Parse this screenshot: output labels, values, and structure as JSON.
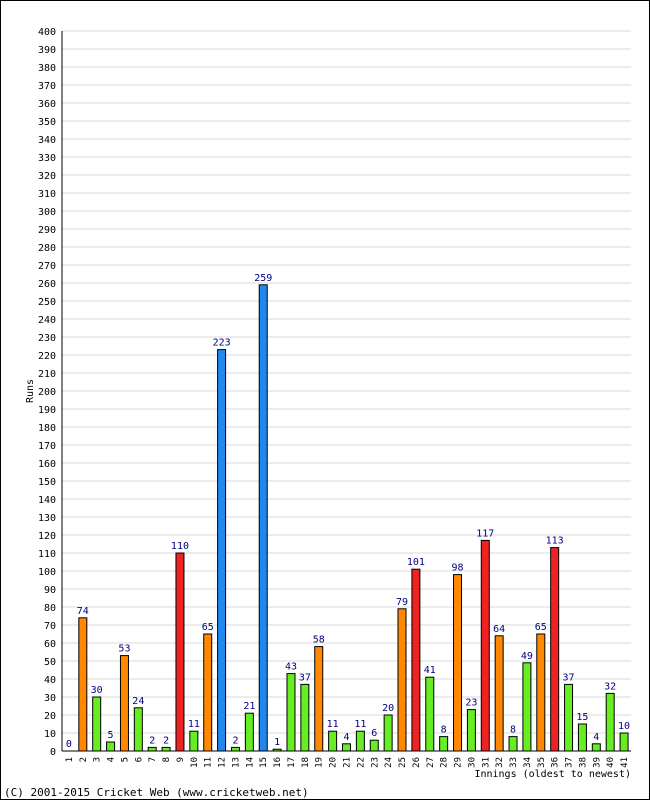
{
  "chart_data": {
    "type": "bar",
    "title": "",
    "xlabel": "Innings (oldest to newest)",
    "ylabel": "Runs",
    "ylim": [
      0,
      400
    ],
    "ytick_step": 10,
    "grid": true,
    "legend": "none",
    "categories": [
      "1",
      "2",
      "3",
      "4",
      "5",
      "6",
      "7",
      "8",
      "9",
      "10",
      "11",
      "12",
      "13",
      "14",
      "15",
      "16",
      "17",
      "18",
      "19",
      "20",
      "21",
      "22",
      "23",
      "24",
      "25",
      "26",
      "27",
      "28",
      "29",
      "30",
      "31",
      "32",
      "33",
      "34",
      "35",
      "36",
      "37",
      "38",
      "39",
      "40",
      "41"
    ],
    "values": [
      0,
      74,
      30,
      5,
      53,
      24,
      2,
      2,
      110,
      11,
      65,
      223,
      2,
      21,
      259,
      1,
      43,
      37,
      58,
      11,
      4,
      11,
      6,
      20,
      79,
      101,
      41,
      8,
      98,
      23,
      117,
      64,
      8,
      49,
      65,
      113,
      37,
      15,
      4,
      32,
      10
    ],
    "data_labels": [
      "0",
      "74",
      "30",
      "5",
      "53",
      "24",
      "2",
      "2",
      "110",
      "11",
      "65",
      "223",
      "2",
      "21",
      "259",
      "1",
      "43",
      "37",
      "58",
      "11",
      "4",
      "11",
      "6",
      "20",
      "79",
      "101",
      "41",
      "8",
      "98",
      "23",
      "117",
      "64",
      "8",
      "49",
      "65",
      "113",
      "37",
      "15",
      "4",
      "32",
      "10"
    ],
    "color_rules": {
      "below_50": "#66ee22",
      "50_to_99": "#ff8800",
      "100_to_199": "#ee2222",
      "200_plus": "#2288ee"
    },
    "colors": {
      "bar_stroke": "#000000",
      "grid": "#d8d8d8",
      "axis": "#000000",
      "label_text": "#000080"
    }
  },
  "footer": {
    "copyright": "(C) 2001-2015 Cricket Web (www.cricketweb.net)"
  }
}
